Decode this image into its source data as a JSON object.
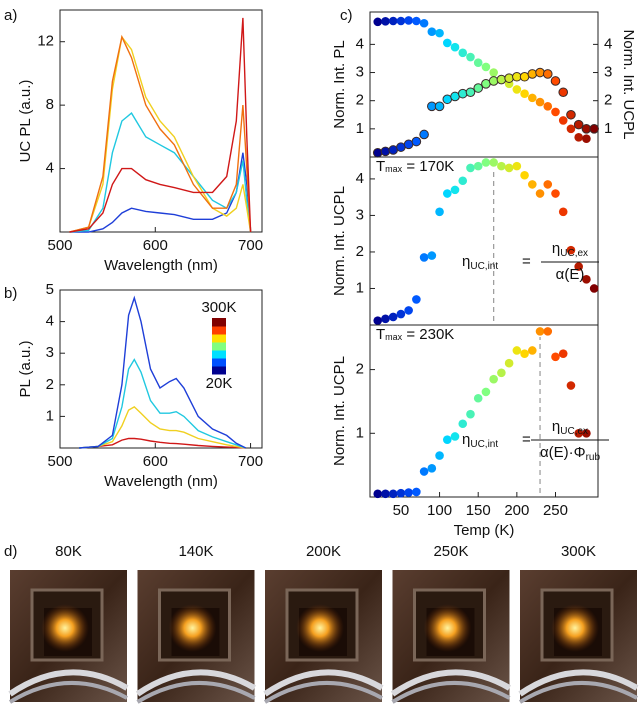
{
  "chart_data": [
    {
      "type": "line",
      "panel": "a)",
      "xlabel": "Wavelength (nm)",
      "ylabel": "UC PL (a.u.)",
      "xlim": [
        500,
        712
      ],
      "ylim": [
        0,
        14
      ],
      "xticks": [
        500,
        600,
        700
      ],
      "yticks": [
        4,
        8,
        12
      ],
      "x": [
        510,
        530,
        545,
        555,
        565,
        575,
        590,
        605,
        620,
        640,
        660,
        675,
        685,
        692,
        696,
        700
      ],
      "series": [
        {
          "color": "#1f3fd8",
          "values": [
            0,
            0,
            0.2,
            0.6,
            1.2,
            1.5,
            1.3,
            1.2,
            1.1,
            0.8,
            0.8,
            1.2,
            2.5,
            5,
            3,
            0
          ]
        },
        {
          "color": "#20c8e0",
          "values": [
            0,
            0.1,
            1.5,
            5,
            7,
            7.5,
            6,
            5.5,
            5,
            3.5,
            2,
            1.5,
            2.5,
            4.5,
            2,
            0
          ]
        },
        {
          "color": "#f0d020",
          "values": [
            0,
            0.3,
            3,
            9,
            12.3,
            11.5,
            8.5,
            7,
            6,
            3.5,
            1.5,
            1,
            1.5,
            3,
            1.5,
            0
          ]
        },
        {
          "color": "#f07010",
          "values": [
            0,
            0.3,
            3.5,
            9.5,
            12.3,
            11,
            8,
            6.5,
            5.5,
            3,
            1.5,
            1.5,
            3,
            8,
            4,
            0
          ]
        },
        {
          "color": "#d01818",
          "values": [
            0,
            0.2,
            1.2,
            3,
            4,
            4,
            3.3,
            3,
            2.8,
            2.5,
            2.5,
            3.5,
            7,
            13.5,
            6,
            0
          ]
        }
      ]
    },
    {
      "type": "line",
      "panel": "b)",
      "xlabel": "Wavelength (nm)",
      "ylabel": "PL (a.u.)",
      "xlim": [
        500,
        712
      ],
      "ylim": [
        0,
        5
      ],
      "xticks": [
        500,
        600,
        700
      ],
      "yticks": [
        1,
        2,
        3,
        4,
        5
      ],
      "colorbar": {
        "colors": [
          "#00008f",
          "#0050ff",
          "#00e0ff",
          "#80ff80",
          "#ffe000",
          "#ff4000",
          "#800000"
        ],
        "labels": [
          "300K",
          "20K"
        ]
      },
      "x": [
        520,
        540,
        555,
        565,
        572,
        578,
        585,
        595,
        605,
        615,
        622,
        630,
        645,
        660,
        675,
        685,
        695
      ],
      "series": [
        {
          "color": "#d01818",
          "values": [
            0,
            0.05,
            0.1,
            0.25,
            0.3,
            0.3,
            0.28,
            0.22,
            0.18,
            0.15,
            0.14,
            0.12,
            0.08,
            0.05,
            0.03,
            0.02,
            0
          ]
        },
        {
          "color": "#f0d020",
          "values": [
            0,
            0.05,
            0.2,
            0.7,
            1.2,
            1.3,
            1.1,
            0.8,
            0.6,
            0.55,
            0.55,
            0.5,
            0.3,
            0.2,
            0.1,
            0.05,
            0
          ]
        },
        {
          "color": "#20c8e0",
          "values": [
            0,
            0.05,
            0.3,
            1.3,
            2.5,
            2.8,
            2.4,
            1.5,
            1.1,
            1.1,
            1.15,
            1,
            0.55,
            0.35,
            0.2,
            0.1,
            0
          ]
        },
        {
          "color": "#1f3fd8",
          "values": [
            0,
            0.05,
            0.4,
            2,
            4.2,
            4.75,
            4,
            2.5,
            1.9,
            2.1,
            2.2,
            1.9,
            1,
            0.6,
            0.4,
            0.15,
            0
          ]
        }
      ]
    },
    {
      "type": "scatter",
      "panel": "c)",
      "ylabel": "Norm. Int. PL",
      "ylabel_color": "#9a80f0",
      "y2label": "Norm. Int. UCPL",
      "y2label_color": "#d01010",
      "xlim": [
        10,
        305
      ],
      "ylim": [
        0,
        5.15
      ],
      "yticks": [
        1,
        2,
        3,
        4
      ],
      "y2lim": [
        0,
        5.15
      ],
      "y2ticks": [
        1,
        2,
        3,
        4
      ],
      "colormap": [
        "#00008f",
        "#0050ff",
        "#00e0ff",
        "#80ff80",
        "#ffe000",
        "#ff4000",
        "#800000"
      ],
      "clim": [
        20,
        300
      ],
      "x": [
        20,
        30,
        40,
        50,
        60,
        70,
        80,
        90,
        100,
        110,
        120,
        130,
        140,
        150,
        160,
        170,
        180,
        190,
        200,
        210,
        220,
        230,
        240,
        250,
        260,
        270,
        280,
        290,
        300
      ],
      "series": [
        {
          "values": [
            4.8,
            4.82,
            4.83,
            4.83,
            4.85,
            4.83,
            4.75,
            4.45,
            4.4,
            4.05,
            3.9,
            3.7,
            3.55,
            3.35,
            3.2,
            3.0,
            2.75,
            2.6,
            2.4,
            2.25,
            2.1,
            1.95,
            1.8,
            1.6,
            1.3,
            1.0,
            0.7,
            0.65,
            null
          ]
        },
        {
          "axis": "y2",
          "edge": "#3a2a2a",
          "values": [
            0.15,
            0.2,
            0.25,
            0.35,
            0.45,
            0.55,
            0.8,
            1.8,
            1.8,
            2.05,
            2.15,
            2.25,
            2.3,
            2.45,
            2.6,
            2.7,
            2.75,
            2.8,
            2.85,
            2.85,
            2.95,
            3.0,
            2.95,
            2.7,
            2.3,
            1.5,
            1.15,
            1.0,
            1.0
          ]
        }
      ]
    },
    {
      "type": "scatter",
      "ylabel": "Norm. Int. UCPL",
      "xlim": [
        10,
        305
      ],
      "ylim": [
        0,
        4.6
      ],
      "yticks": [
        1,
        2,
        3,
        4
      ],
      "colormap": [
        "#00008f",
        "#0050ff",
        "#00e0ff",
        "#80ff80",
        "#ffe000",
        "#ff4000",
        "#800000"
      ],
      "clim": [
        20,
        300
      ],
      "tmax": {
        "value": 170,
        "text": "T",
        "sub": "max",
        "rest": " = 170K"
      },
      "formula": {
        "lhs": "η",
        "lhs_sub": "UC,int",
        "eq": "=",
        "num": "η",
        "num_sub": "UC,ex",
        "den": "α(E)"
      },
      "x": [
        20,
        30,
        40,
        50,
        60,
        70,
        80,
        90,
        100,
        110,
        120,
        130,
        140,
        150,
        160,
        170,
        180,
        190,
        200,
        210,
        220,
        230,
        240,
        250,
        260,
        270,
        280,
        290,
        300
      ],
      "series": [
        {
          "values": [
            0.12,
            0.17,
            0.22,
            0.3,
            0.4,
            0.7,
            1.85,
            1.9,
            3.1,
            3.6,
            3.7,
            3.95,
            4.3,
            4.35,
            4.45,
            4.45,
            4.35,
            4.3,
            4.35,
            4.1,
            3.85,
            3.6,
            3.85,
            3.6,
            3.1,
            2.05,
            1.6,
            1.25,
            1.0
          ]
        }
      ]
    },
    {
      "type": "scatter",
      "ylabel": "Norm. Int. UCPL",
      "xlabel": "Temp (K)",
      "xlim": [
        10,
        305
      ],
      "ylim": [
        0,
        2.7
      ],
      "xticks": [
        50,
        100,
        150,
        200,
        250
      ],
      "yticks": [
        1,
        2
      ],
      "colormap": [
        "#00008f",
        "#0050ff",
        "#00e0ff",
        "#80ff80",
        "#ffe000",
        "#ff4000",
        "#800000"
      ],
      "clim": [
        20,
        300
      ],
      "tmax": {
        "value": 230,
        "text": "T",
        "sub": "max",
        "rest": " = 230K"
      },
      "formula": {
        "lhs": "η",
        "lhs_sub": "UC,int",
        "eq": "=",
        "num": "η",
        "num_sub": "UC,ex",
        "den": "α(E)·Φ",
        "den_sub": "rub"
      },
      "x": [
        20,
        30,
        40,
        50,
        60,
        70,
        80,
        90,
        100,
        110,
        120,
        130,
        140,
        150,
        160,
        170,
        180,
        190,
        200,
        210,
        220,
        230,
        240,
        250,
        260,
        270,
        280,
        290,
        300
      ],
      "series": [
        {
          "values": [
            0.05,
            0.05,
            0.05,
            0.06,
            0.07,
            0.08,
            0.4,
            0.45,
            0.65,
            0.9,
            0.95,
            1.15,
            1.3,
            1.55,
            1.65,
            1.85,
            1.95,
            2.1,
            2.3,
            2.25,
            2.3,
            2.6,
            2.6,
            2.2,
            2.25,
            1.75,
            1.0,
            1.0,
            null
          ]
        }
      ]
    }
  ],
  "photos": {
    "label": "d)",
    "items": [
      {
        "text": "80K",
        "color": "#1f4fe0"
      },
      {
        "text": "140K",
        "color": "#30d8d0"
      },
      {
        "text": "200K",
        "color": "#f0d000"
      },
      {
        "text": "250K",
        "color": "#f03010"
      },
      {
        "text": "300K",
        "color": "#7a0a0a"
      }
    ]
  }
}
